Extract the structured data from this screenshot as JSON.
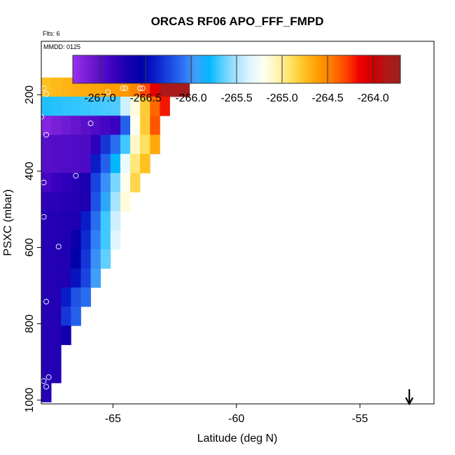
{
  "chart_data": {
    "type": "heatmap",
    "title": "ORCAS RF06 APO_FFF_FMPD",
    "subtitle_flights": "Flts: 6",
    "subtitle_date": "MMDD: 0125",
    "xlabel": "Latitude (deg N)",
    "ylabel": "PSXC (mbar)",
    "xlim": [
      -67.9,
      -52.0
    ],
    "ylim": [
      1010,
      60
    ],
    "x_ticks": [
      -65,
      -60,
      -55
    ],
    "x_tick_labels": [
      "-65",
      "-60",
      "-55"
    ],
    "y_ticks": [
      200,
      400,
      600,
      800,
      1000
    ],
    "y_tick_labels": [
      "200",
      "400",
      "600",
      "800",
      "1000"
    ],
    "colorbar": {
      "range": [
        -267.3,
        -263.7
      ],
      "ticks": [
        -267.0,
        -266.5,
        -266.0,
        -265.5,
        -265.0,
        -264.5,
        -264.0
      ],
      "tick_labels": [
        "-267.0",
        "-266.5",
        "-266.0",
        "-265.5",
        "-265.0",
        "-264.5",
        "-264.0"
      ]
    },
    "colors": [
      "#9b2ff0",
      "#7a1fd8",
      "#5a10c8",
      "#3a00c0",
      "#1a00b0",
      "#0000a8",
      "#0a1cc8",
      "#1a44e0",
      "#2a6ef0",
      "#40a0f8",
      "#00b8ff",
      "#60d0ff",
      "#a8e4ff",
      "#e0f6ff",
      "#fffff0",
      "#fff4b0",
      "#ffe060",
      "#ffc020",
      "#ff9c00",
      "#ff7800",
      "#ff4400",
      "#ee0000",
      "#cc0000",
      "#b01818",
      "#9a2020"
    ],
    "pressure_bins": [
      180,
      230,
      280,
      330,
      380,
      430,
      480,
      530,
      580,
      630,
      680,
      730,
      780,
      830,
      880,
      930,
      980
    ],
    "lat_bin_width": 0.4,
    "rows": [
      {
        "p": 180,
        "lat0": -67.9,
        "values": [
          -264.75,
          -264.72,
          -264.7,
          -264.68,
          -264.66,
          -264.64,
          -264.62,
          -264.6,
          -264.58,
          -264.5,
          -264.3,
          -264.1,
          -263.85,
          -263.8,
          -263.78
        ]
      },
      {
        "p": 230,
        "lat0": -67.9,
        "values": [
          -265.75,
          -265.74,
          -265.73,
          -265.72,
          -265.71,
          -265.7,
          -265.69,
          -265.68,
          -265.4,
          -265.15,
          -264.8,
          -264.4,
          -264.2
        ]
      },
      {
        "p": 280,
        "lat0": -67.9,
        "values": [
          -267.2,
          -267.15,
          -267.1,
          -267.05,
          -267.0,
          -266.95,
          -266.9,
          -266.85,
          -266.15,
          -265.2,
          -264.8,
          -264.35
        ]
      },
      {
        "p": 330,
        "lat0": -67.9,
        "values": [
          -266.98,
          -266.97,
          -266.96,
          -266.95,
          -266.94,
          -266.8,
          -266.3,
          -266.1,
          -265.7,
          -265.1,
          -264.9,
          -264.65
        ]
      },
      {
        "p": 380,
        "lat0": -67.9,
        "values": [
          -266.98,
          -266.97,
          -266.96,
          -266.95,
          -266.94,
          -266.4,
          -266.15,
          -265.8,
          -265.3,
          -264.95,
          -264.75
        ]
      },
      {
        "p": 430,
        "lat0": -67.9,
        "values": [
          -266.9,
          -266.85,
          -266.8,
          -266.75,
          -266.7,
          -266.25,
          -266.0,
          -265.6,
          -265.2,
          -264.85
        ]
      },
      {
        "p": 480,
        "lat0": -67.9,
        "values": [
          -266.8,
          -266.78,
          -266.76,
          -266.74,
          -266.72,
          -266.2,
          -265.9,
          -265.5,
          -265.15
        ]
      },
      {
        "p": 530,
        "lat0": -67.9,
        "values": [
          -266.75,
          -266.74,
          -266.73,
          -266.72,
          -266.4,
          -266.1,
          -265.7,
          -265.4
        ]
      },
      {
        "p": 580,
        "lat0": -67.9,
        "values": [
          -266.75,
          -266.74,
          -266.73,
          -266.6,
          -266.35,
          -266.05,
          -265.7,
          -265.35
        ]
      },
      {
        "p": 630,
        "lat0": -67.9,
        "values": [
          -266.75,
          -266.74,
          -266.73,
          -266.55,
          -266.3,
          -266.0,
          -265.65
        ]
      },
      {
        "p": 680,
        "lat0": -67.9,
        "values": [
          -266.75,
          -266.74,
          -266.73,
          -266.45,
          -266.25,
          -265.95
        ]
      },
      {
        "p": 730,
        "lat0": -67.9,
        "values": [
          -266.75,
          -266.74,
          -266.4,
          -266.2,
          -266.1
        ]
      },
      {
        "p": 780,
        "lat0": -67.9,
        "values": [
          -266.75,
          -266.74,
          -266.3,
          -266.15
        ]
      },
      {
        "p": 830,
        "lat0": -67.9,
        "values": [
          -266.75,
          -266.74,
          -266.65
        ]
      },
      {
        "p": 880,
        "lat0": -67.9,
        "values": [
          -266.75,
          -266.74
        ]
      },
      {
        "p": 930,
        "lat0": -67.9,
        "values": [
          -266.75,
          -266.74
        ]
      },
      {
        "p": 980,
        "lat0": -67.9,
        "values": [
          -266.75
        ]
      }
    ],
    "obs_points": [
      {
        "lat": -67.8,
        "p": 183
      },
      {
        "lat": -67.7,
        "p": 198
      },
      {
        "lat": -65.2,
        "p": 193
      },
      {
        "lat": -64.6,
        "p": 183
      },
      {
        "lat": -64.5,
        "p": 183
      },
      {
        "lat": -63.9,
        "p": 183
      },
      {
        "lat": -63.8,
        "p": 183
      },
      {
        "lat": -67.9,
        "p": 258
      },
      {
        "lat": -65.9,
        "p": 275
      },
      {
        "lat": -67.7,
        "p": 305
      },
      {
        "lat": -67.8,
        "p": 430
      },
      {
        "lat": -66.5,
        "p": 412
      },
      {
        "lat": -67.8,
        "p": 520
      },
      {
        "lat": -67.2,
        "p": 598
      },
      {
        "lat": -67.7,
        "p": 742
      },
      {
        "lat": -67.6,
        "p": 940
      },
      {
        "lat": -67.8,
        "p": 950
      },
      {
        "lat": -67.7,
        "p": 965
      }
    ],
    "arrow_lat": -53.0
  }
}
